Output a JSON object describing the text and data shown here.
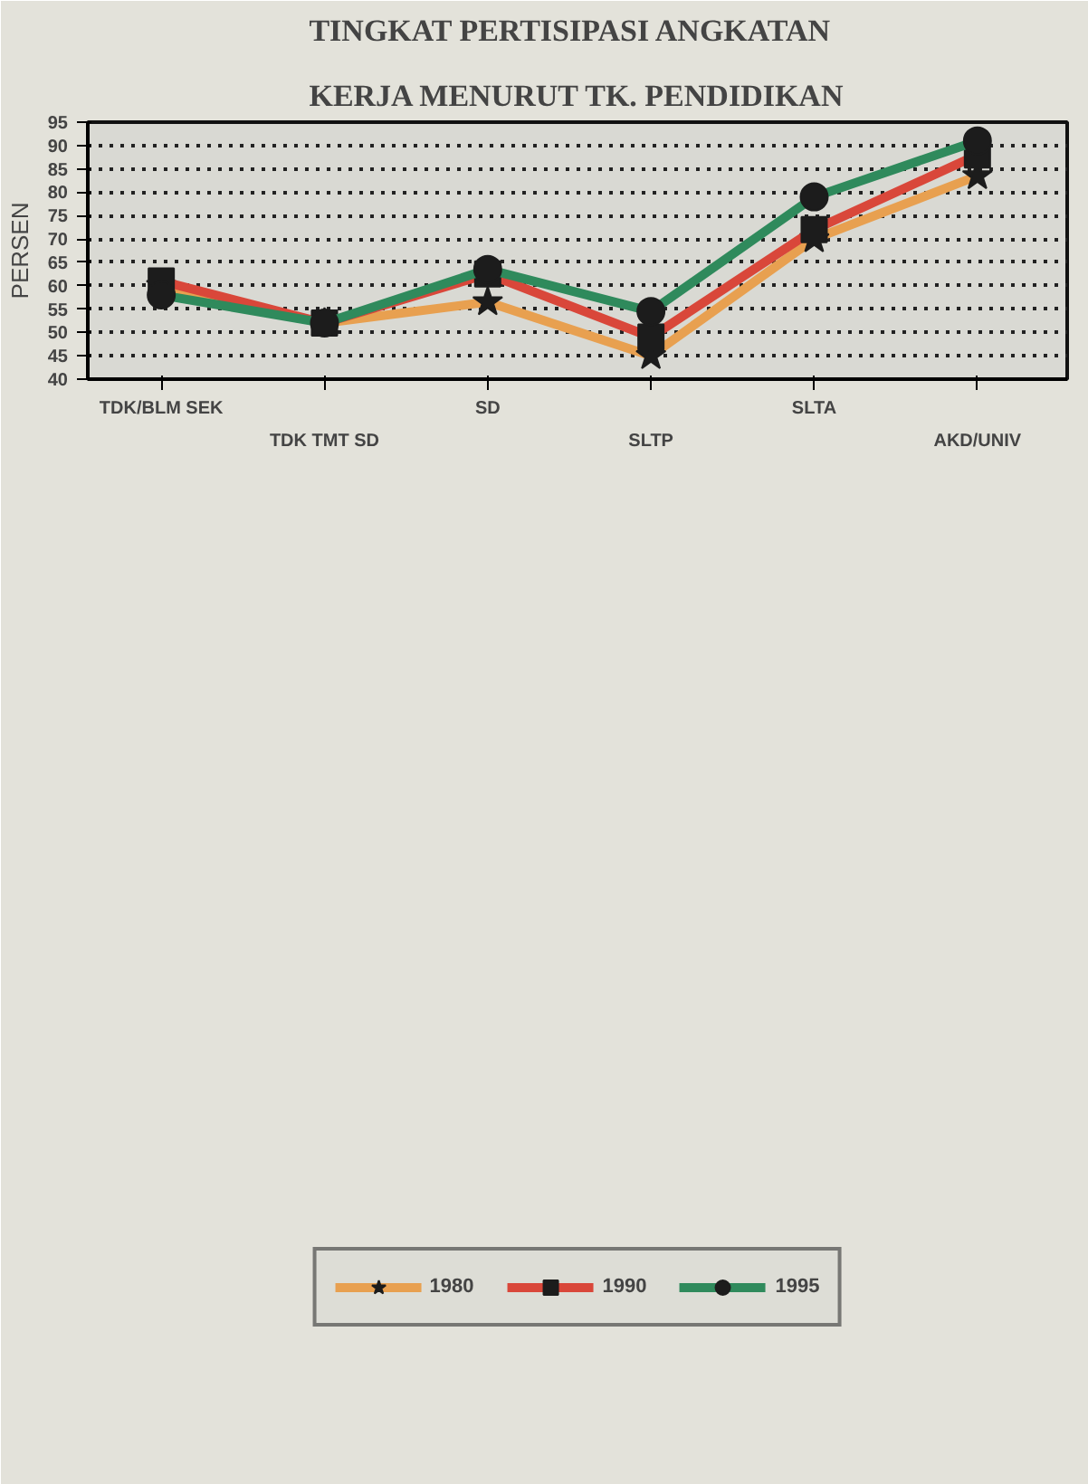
{
  "chart_data": {
    "type": "line",
    "title": "TINGKAT PERTISIPASI ANGKATAN\nKERJA MENURUT TK. PENDIDIKAN",
    "ylabel": "PERSEN",
    "categories": [
      "TDK/BLM SEK",
      "TDK TMT SD",
      "SD",
      "SLTP",
      "SLTA",
      "AKD/UNIV"
    ],
    "series": [
      {
        "name": "1980",
        "color": "#e8a050",
        "marker": "star",
        "values": [
          60,
          52,
          56.5,
          45,
          70,
          83.5
        ]
      },
      {
        "name": "1990",
        "color": "#d9473a",
        "marker": "square",
        "values": [
          61,
          52,
          62.5,
          49,
          72,
          88
        ]
      },
      {
        "name": "1995",
        "color": "#2f8a5c",
        "marker": "circle",
        "values": [
          58,
          52,
          63.5,
          54.5,
          79,
          91
        ]
      }
    ],
    "ylim": [
      40,
      95
    ],
    "yticks": [
      40,
      45,
      50,
      55,
      60,
      65,
      70,
      75,
      80,
      85,
      90,
      95
    ],
    "grid": "y",
    "legend": "bottom",
    "line_style": "solid"
  }
}
